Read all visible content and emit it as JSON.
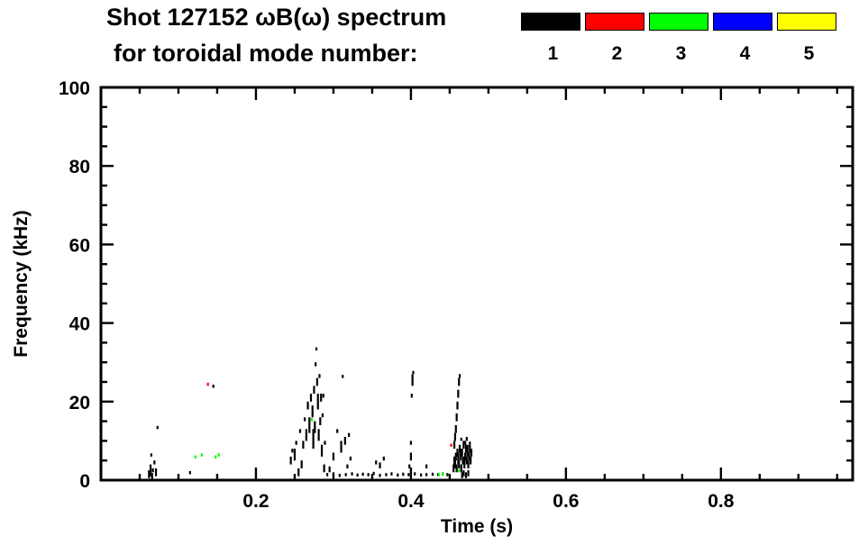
{
  "title": {
    "line1": "Shot 127152 ωB(ω) spectrum",
    "line2": "for toroidal mode number:"
  },
  "chart_data": {
    "type": "scatter",
    "title": "Shot 127152 ωB(ω) spectrum for toroidal mode number: 1 2 3 4 5",
    "xlabel": "Time (s)",
    "ylabel": "Frequency (kHz)",
    "xlim": [
      0,
      0.97
    ],
    "ylim": [
      0,
      100
    ],
    "grid": false,
    "x_major_ticks": [
      0.2,
      0.4,
      0.6,
      0.8
    ],
    "x_tick_labels": [
      "0.2",
      "0.4",
      "0.6",
      "0.8"
    ],
    "x_minor_step": 0.05,
    "y_major_ticks": [
      0,
      20,
      40,
      60,
      80,
      100
    ],
    "y_tick_labels": [
      "0",
      "20",
      "40",
      "60",
      "80",
      "100"
    ],
    "y_minor_step": 5,
    "legend": {
      "position": "top-right",
      "labels": [
        "1",
        "2",
        "3",
        "4",
        "5"
      ],
      "colors": [
        "#000000",
        "#ff0000",
        "#00ff00",
        "#0000ff",
        "#ffff00"
      ]
    },
    "series": [
      {
        "name": "1",
        "color": "#000000",
        "points": [
          [
            0.062,
            0.5,
            2
          ],
          [
            0.064,
            1,
            3
          ],
          [
            0.066,
            0.3,
            1.5
          ],
          [
            0.067,
            2,
            1
          ],
          [
            0.069,
            4,
            1
          ],
          [
            0.071,
            1,
            2
          ],
          [
            0.065,
            6,
            0.8
          ],
          [
            0.073,
            13,
            0.8
          ],
          [
            0.115,
            1.5,
            0.8
          ],
          [
            0.145,
            23.5,
            0.8
          ],
          [
            0.245,
            4,
            2
          ],
          [
            0.247,
            7,
            1
          ],
          [
            0.25,
            5,
            3
          ],
          [
            0.252,
            9,
            1
          ],
          [
            0.255,
            1,
            2
          ],
          [
            0.257,
            12,
            1
          ],
          [
            0.259,
            3,
            2
          ],
          [
            0.261,
            8,
            2
          ],
          [
            0.263,
            15,
            1
          ],
          [
            0.265,
            10,
            3
          ],
          [
            0.267,
            18,
            2
          ],
          [
            0.269,
            12,
            4
          ],
          [
            0.271,
            20,
            2
          ],
          [
            0.273,
            16,
            3
          ],
          [
            0.274,
            8,
            5
          ],
          [
            0.275,
            22,
            2
          ],
          [
            0.276,
            12,
            3
          ],
          [
            0.277,
            29,
            1
          ],
          [
            0.278,
            33,
            0.8
          ],
          [
            0.279,
            24,
            2
          ],
          [
            0.28,
            18,
            4
          ],
          [
            0.281,
            10,
            3
          ],
          [
            0.282,
            26,
            1
          ],
          [
            0.283,
            14,
            2
          ],
          [
            0.284,
            20,
            2
          ],
          [
            0.285,
            6,
            3
          ],
          [
            0.286,
            16,
            1
          ],
          [
            0.287,
            21,
            1
          ],
          [
            0.288,
            2,
            2
          ],
          [
            0.289,
            9,
            1
          ],
          [
            0.295,
            2,
            1.5
          ],
          [
            0.3,
            5,
            2
          ],
          [
            0.305,
            12,
            1
          ],
          [
            0.31,
            7,
            3
          ],
          [
            0.312,
            26,
            0.8
          ],
          [
            0.315,
            9,
            2
          ],
          [
            0.318,
            3,
            1
          ],
          [
            0.32,
            11,
            1
          ],
          [
            0.322,
            5,
            1
          ],
          [
            0.292,
            1,
            0.8
          ],
          [
            0.3,
            1.2,
            0.8
          ],
          [
            0.308,
            0.8,
            0.8
          ],
          [
            0.316,
            1,
            0.8
          ],
          [
            0.324,
            1.2,
            0.8
          ],
          [
            0.331,
            0.9,
            0.8
          ],
          [
            0.338,
            1.1,
            0.8
          ],
          [
            0.345,
            1,
            0.8
          ],
          [
            0.352,
            1.3,
            0.8
          ],
          [
            0.36,
            0.8,
            0.8
          ],
          [
            0.368,
            1,
            0.8
          ],
          [
            0.375,
            1.2,
            0.8
          ],
          [
            0.383,
            0.9,
            0.8
          ],
          [
            0.39,
            1.1,
            0.8
          ],
          [
            0.397,
            1,
            0.8
          ],
          [
            0.405,
            1.2,
            0.8
          ],
          [
            0.413,
            0.9,
            0.8
          ],
          [
            0.42,
            1,
            0.8
          ],
          [
            0.428,
            1.1,
            0.8
          ],
          [
            0.435,
            1,
            0.8
          ],
          [
            0.441,
            1.2,
            0.8
          ],
          [
            0.447,
            1,
            0.8
          ],
          [
            0.355,
            4,
            1
          ],
          [
            0.36,
            3,
            1.5
          ],
          [
            0.365,
            5,
            1
          ],
          [
            0.42,
            3,
            1
          ],
          [
            0.398,
            3,
            1
          ],
          [
            0.4,
            5,
            2
          ],
          [
            0.4,
            9,
            1
          ],
          [
            0.401,
            21,
            1
          ],
          [
            0.402,
            24,
            3
          ],
          [
            0.403,
            27,
            0.8
          ],
          [
            0.456,
            8,
            2
          ],
          [
            0.457,
            10,
            2
          ],
          [
            0.458,
            12,
            2
          ],
          [
            0.459,
            15,
            2
          ],
          [
            0.46,
            18,
            2
          ],
          [
            0.461,
            21,
            2
          ],
          [
            0.462,
            24,
            2
          ],
          [
            0.463,
            26,
            1
          ],
          [
            0.455,
            2,
            2
          ],
          [
            0.456,
            4,
            2
          ],
          [
            0.457,
            3,
            3
          ],
          [
            0.458,
            5,
            2
          ],
          [
            0.459,
            2,
            2
          ],
          [
            0.46,
            6,
            2
          ],
          [
            0.461,
            4,
            3
          ],
          [
            0.462,
            3,
            2
          ],
          [
            0.463,
            7,
            2
          ],
          [
            0.464,
            5,
            3
          ],
          [
            0.465,
            2,
            2
          ],
          [
            0.466,
            6,
            2
          ],
          [
            0.467,
            4,
            2
          ],
          [
            0.468,
            8,
            2
          ],
          [
            0.469,
            3,
            3
          ],
          [
            0.47,
            5,
            2
          ],
          [
            0.471,
            7,
            2
          ],
          [
            0.472,
            4,
            2
          ],
          [
            0.473,
            6,
            3
          ],
          [
            0.474,
            3,
            2
          ],
          [
            0.475,
            5,
            2
          ],
          [
            0.476,
            7,
            2
          ],
          [
            0.477,
            4,
            2
          ],
          [
            0.478,
            6,
            2
          ],
          [
            0.47,
            9,
            1
          ],
          [
            0.472,
            10,
            1
          ],
          [
            0.468,
            1,
            1.5
          ],
          [
            0.474,
            1,
            1.5
          ],
          [
            0.465,
            10,
            0.8
          ],
          [
            0.476,
            9,
            0.8
          ],
          [
            0.466,
            0.5,
            1.5
          ],
          [
            0.471,
            0.5,
            1.5
          ]
        ]
      },
      {
        "name": "2",
        "color": "#ff0000",
        "points": [
          [
            0.138,
            24,
            0.8
          ],
          [
            0.452,
            8.5,
            0.8
          ]
        ]
      },
      {
        "name": "3",
        "color": "#00ff00",
        "points": [
          [
            0.122,
            5.5,
            0.8
          ],
          [
            0.13,
            6,
            0.8
          ],
          [
            0.148,
            5.5,
            0.8
          ],
          [
            0.152,
            6,
            0.8
          ],
          [
            0.272,
            15,
            0.8
          ],
          [
            0.436,
            1,
            0.8
          ],
          [
            0.441,
            1.2,
            0.8
          ],
          [
            0.462,
            2,
            0.8
          ]
        ]
      },
      {
        "name": "4",
        "color": "#0000ff",
        "points": []
      },
      {
        "name": "5",
        "color": "#ffff00",
        "points": []
      }
    ]
  }
}
